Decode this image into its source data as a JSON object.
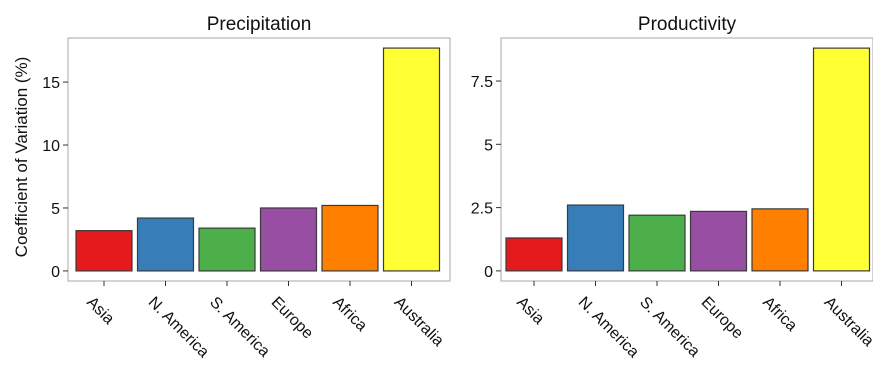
{
  "ylabel": "Coefficient of Variation (%)",
  "chart_data": [
    {
      "type": "bar",
      "title": "Precipitation",
      "categories": [
        "Asia",
        "N. America",
        "S. America",
        "Europe",
        "Africa",
        "Australia"
      ],
      "values": [
        3.2,
        4.2,
        3.4,
        5.0,
        5.2,
        17.7
      ],
      "ylim": [
        -0.8,
        18.5
      ],
      "yticks": [
        0,
        5,
        10,
        15
      ],
      "ytick_labels": [
        "0",
        "5",
        "10",
        "15"
      ],
      "colors": [
        "#e41a1c",
        "#377eb8",
        "#4daf4a",
        "#984ea3",
        "#ff7f00",
        "#ffff33"
      ],
      "grid": false
    },
    {
      "type": "bar",
      "title": "Productivity",
      "categories": [
        "Asia",
        "N. America",
        "S. America",
        "Europe",
        "Africa",
        "Australia"
      ],
      "values": [
        1.3,
        2.6,
        2.2,
        2.35,
        2.45,
        8.8
      ],
      "ylim": [
        -0.4,
        9.2
      ],
      "yticks": [
        0,
        2.5,
        5,
        7.5
      ],
      "ytick_labels": [
        "0",
        "2.5",
        "5",
        "7.5"
      ],
      "colors": [
        "#e41a1c",
        "#377eb8",
        "#4daf4a",
        "#984ea3",
        "#ff7f00",
        "#ffff33"
      ],
      "grid": false
    }
  ]
}
